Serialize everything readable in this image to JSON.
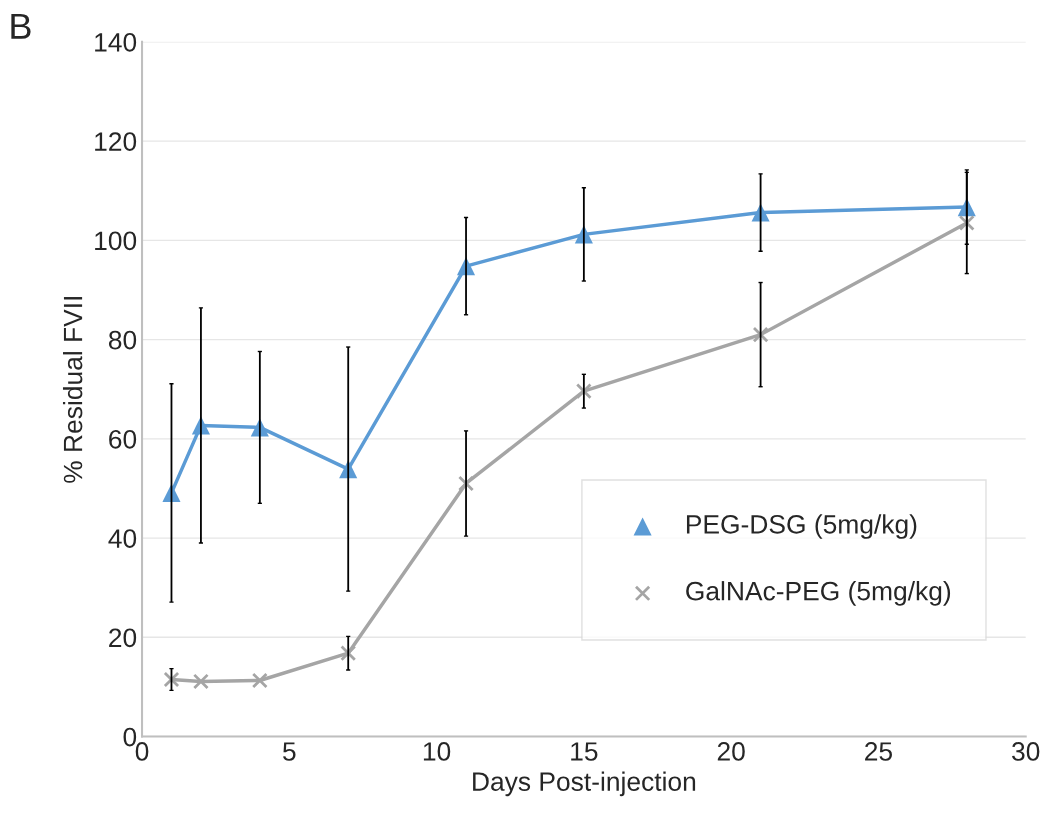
{
  "chart_data": {
    "type": "line",
    "title": "B",
    "xlabel": "Days Post-injection",
    "ylabel": "% Residual FVII",
    "x": [
      1,
      2,
      4,
      7,
      11,
      15,
      21,
      28
    ],
    "series": [
      {
        "name": "PEG-DSG (5mg/kg)",
        "color": "#5b9bd5",
        "marker": "triangle",
        "values": [
          49.1,
          62.7,
          62.3,
          53.9,
          94.8,
          101.2,
          105.6,
          106.7
        ],
        "errors": [
          22,
          23.7,
          15.3,
          24.6,
          9.8,
          9.4,
          7.8,
          7.5
        ]
      },
      {
        "name": "GalNAc-PEG (5mg/kg)",
        "color": "#a5a5a5",
        "marker": "cross",
        "values": [
          11.5,
          11.1,
          11.3,
          16.8,
          51.0,
          69.6,
          81.0,
          103.5
        ],
        "errors": [
          2.2,
          null,
          null,
          3.4,
          10.6,
          3.4,
          10.5,
          10.2
        ]
      }
    ],
    "xlim": [
      0,
      30
    ],
    "xticks": [
      0,
      5,
      10,
      15,
      20,
      25,
      30
    ],
    "ylim": [
      0,
      140
    ],
    "yticks": [
      0,
      20,
      40,
      60,
      80,
      100,
      120,
      140
    ],
    "grid": "y",
    "legend": "lower right",
    "line_style": "solid"
  }
}
